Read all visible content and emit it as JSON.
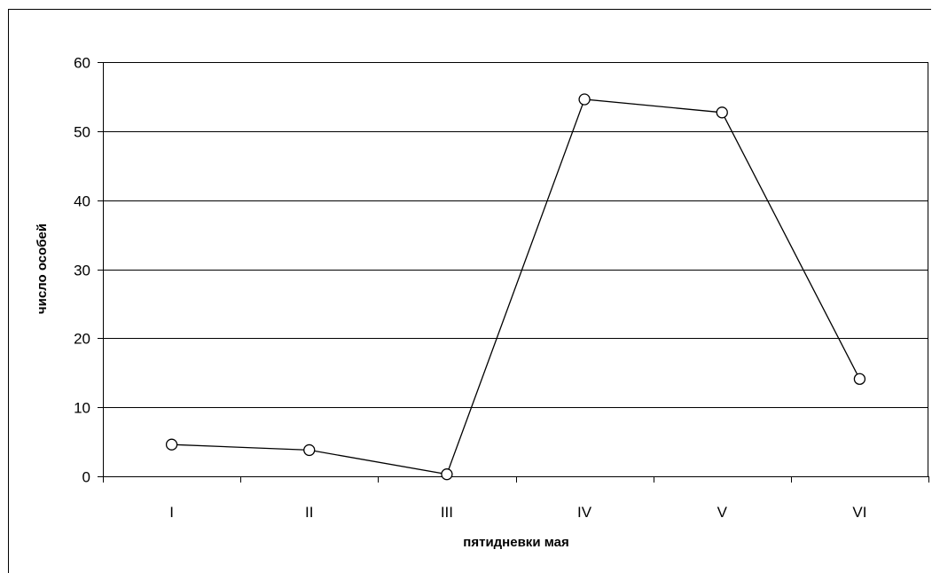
{
  "chart_data": {
    "type": "line",
    "title": "",
    "xlabel": "пятидневки мая",
    "ylabel": "число особей",
    "categories": [
      "I",
      "II",
      "III",
      "IV",
      "V",
      "VI"
    ],
    "series": [
      {
        "values": [
          4.6,
          3.8,
          0.3,
          54.6,
          52.7,
          14.1
        ]
      }
    ],
    "ylim": [
      0,
      60
    ],
    "yticks": [
      0,
      10,
      20,
      30,
      40,
      50,
      60
    ],
    "grid": true,
    "legend": "none",
    "colors": {
      "line": "#000000",
      "marker_fill": "#ffffff",
      "grid": "#000000",
      "frame": "#000000"
    }
  }
}
